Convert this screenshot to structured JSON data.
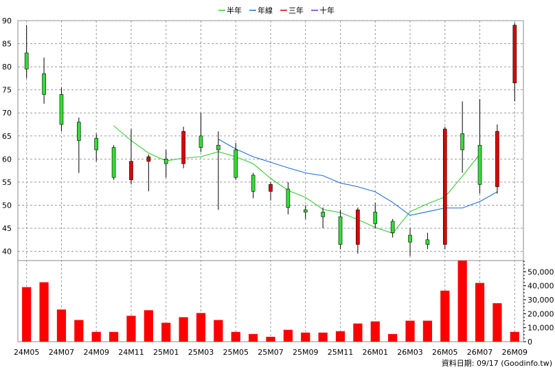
{
  "chart_data": {
    "type": "candlestick",
    "legend": {
      "placement": "top-center",
      "items": [
        {
          "name": "半年",
          "color": "#33cc33"
        },
        {
          "name": "年線",
          "color": "#1f6fd1"
        },
        {
          "name": "三年",
          "color": "#cc0000"
        },
        {
          "name": "十年",
          "color": "#6633cc"
        }
      ]
    },
    "price_axis": {
      "ylim": [
        38,
        90
      ],
      "ticks": [
        40,
        45,
        50,
        55,
        60,
        65,
        70,
        75,
        80,
        85,
        90
      ],
      "grid": true
    },
    "volume_axis": {
      "ylim": [
        0,
        58000
      ],
      "ticks": [
        0,
        10000,
        20000,
        30000,
        40000,
        50000
      ],
      "tick_labels": [
        "0",
        "10,000",
        "20,000",
        "30,000",
        "40,000",
        "50,000"
      ]
    },
    "x_tick_labels": [
      {
        "label": "24M05",
        "index": 0
      },
      {
        "label": "24M07",
        "index": 2
      },
      {
        "label": "24M09",
        "index": 4
      },
      {
        "label": "24M11",
        "index": 6
      },
      {
        "label": "25M01",
        "index": 8
      },
      {
        "label": "25M03",
        "index": 10
      },
      {
        "label": "25M05",
        "index": 12
      },
      {
        "label": "25M07",
        "index": 14
      },
      {
        "label": "25M09",
        "index": 16
      },
      {
        "label": "25M11",
        "index": 18
      },
      {
        "label": "26M01",
        "index": 20
      },
      {
        "label": "26M03",
        "index": 22
      },
      {
        "label": "26M05",
        "index": 24
      },
      {
        "label": "26M07",
        "index": 26
      },
      {
        "label": "26M09",
        "index": 28
      }
    ],
    "candles": [
      {
        "open": 83,
        "close": 79.5,
        "high": 89,
        "low": 77.5,
        "volume": 39000
      },
      {
        "open": 78.5,
        "close": 74,
        "high": 82,
        "low": 72,
        "volume": 42500
      },
      {
        "open": 74,
        "close": 67.5,
        "high": 75.5,
        "low": 66,
        "volume": 23000
      },
      {
        "open": 68,
        "close": 64,
        "high": 69,
        "low": 57,
        "volume": 15500
      },
      {
        "open": 64.5,
        "close": 62,
        "high": 65.5,
        "low": 59.5,
        "volume": 7000
      },
      {
        "open": 62.5,
        "close": 56,
        "high": 63,
        "low": 55.5,
        "volume": 7000
      },
      {
        "open": 55.5,
        "close": 59.5,
        "high": 66.5,
        "low": 54.5,
        "volume": 18500
      },
      {
        "open": 59.5,
        "close": 60.5,
        "high": 61,
        "low": 53,
        "volume": 22500
      },
      {
        "open": 60,
        "close": 59,
        "high": 62,
        "low": 56,
        "volume": 13500
      },
      {
        "open": 59,
        "close": 66,
        "high": 67,
        "low": 58,
        "volume": 17500
      },
      {
        "open": 65,
        "close": 62.5,
        "high": 70,
        "low": 61.5,
        "volume": 20500
      },
      {
        "open": 63,
        "close": 62,
        "high": 66,
        "low": 49,
        "volume": 15500
      },
      {
        "open": 62,
        "close": 56,
        "high": 63.5,
        "low": 55.5,
        "volume": 7000
      },
      {
        "open": 56.5,
        "close": 53,
        "high": 57,
        "low": 51.5,
        "volume": 5500
      },
      {
        "open": 53,
        "close": 54.5,
        "high": 55,
        "low": 51,
        "volume": 3500
      },
      {
        "open": 53.5,
        "close": 49.5,
        "high": 55,
        "low": 48,
        "volume": 8500
      },
      {
        "open": 49,
        "close": 48.5,
        "high": 50,
        "low": 47,
        "volume": 6500
      },
      {
        "open": 48.5,
        "close": 47.5,
        "high": 49.5,
        "low": 45,
        "volume": 6500
      },
      {
        "open": 47.5,
        "close": 41.5,
        "high": 49,
        "low": 40.5,
        "volume": 7500
      },
      {
        "open": 41.5,
        "close": 49,
        "high": 49.5,
        "low": 39.5,
        "volume": 13000
      },
      {
        "open": 48.5,
        "close": 46,
        "high": 50.5,
        "low": 45,
        "volume": 14500
      },
      {
        "open": 46.5,
        "close": 44,
        "high": 47,
        "low": 43,
        "volume": 5500
      },
      {
        "open": 43.5,
        "close": 42,
        "high": 45,
        "low": 39,
        "volume": 15000
      },
      {
        "open": 42.5,
        "close": 41.5,
        "high": 44,
        "low": 40.5,
        "volume": 15000
      },
      {
        "open": 41.5,
        "close": 66.5,
        "high": 67,
        "low": 40.5,
        "volume": 36500
      },
      {
        "open": 65.5,
        "close": 62,
        "high": 72.5,
        "low": 57,
        "volume": 58000
      },
      {
        "open": 63,
        "close": 54.5,
        "high": 73,
        "low": 52.5,
        "volume": 42000
      },
      {
        "open": 54,
        "close": 66,
        "high": 67.5,
        "low": 52.5,
        "volume": 27500
      },
      {
        "open": 76.5,
        "close": 89,
        "high": 89.5,
        "low": 72.5,
        "volume": 7000
      }
    ],
    "moving_averages": [
      {
        "name": "半年",
        "color": "#33cc33",
        "start_index": 5,
        "values": [
          67.2,
          64,
          61.3,
          59.6,
          60.2,
          60.5,
          61.6,
          60.5,
          59,
          55.8,
          53.2,
          51.7,
          49.1,
          48.4,
          46.9,
          45.2,
          43.9,
          48.6,
          50.3,
          51.8,
          56.3,
          61.1
        ]
      },
      {
        "name": "年線",
        "color": "#1f6fd1",
        "start_index": 11,
        "values": [
          64.3,
          62.2,
          60.5,
          59.3,
          58.1,
          57,
          56.4,
          54.8,
          54,
          52.9,
          50.6,
          47.8,
          48.6,
          49.4,
          49.4,
          50.8,
          52.9
        ]
      }
    ]
  },
  "footer": {
    "text": "資料日期: 09/17  (Goodinfo.tw)"
  }
}
